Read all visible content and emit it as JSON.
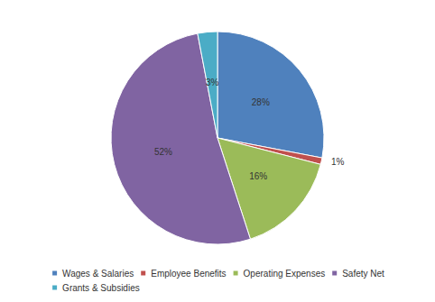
{
  "chart_data": {
    "type": "pie",
    "categories": [
      "Wages & Salaries",
      "Employee Benefits",
      "Operating Expenses",
      "Safety Net",
      "Grants & Subsidies"
    ],
    "values": [
      28,
      1,
      16,
      52,
      3
    ],
    "value_labels": [
      "28%",
      "1%",
      "16%",
      "52%",
      "3%"
    ],
    "colors": [
      "#4f81bd",
      "#c0504d",
      "#9bbb59",
      "#8064a2",
      "#4bacc6"
    ],
    "data_labels": true,
    "legend": "bottom"
  }
}
